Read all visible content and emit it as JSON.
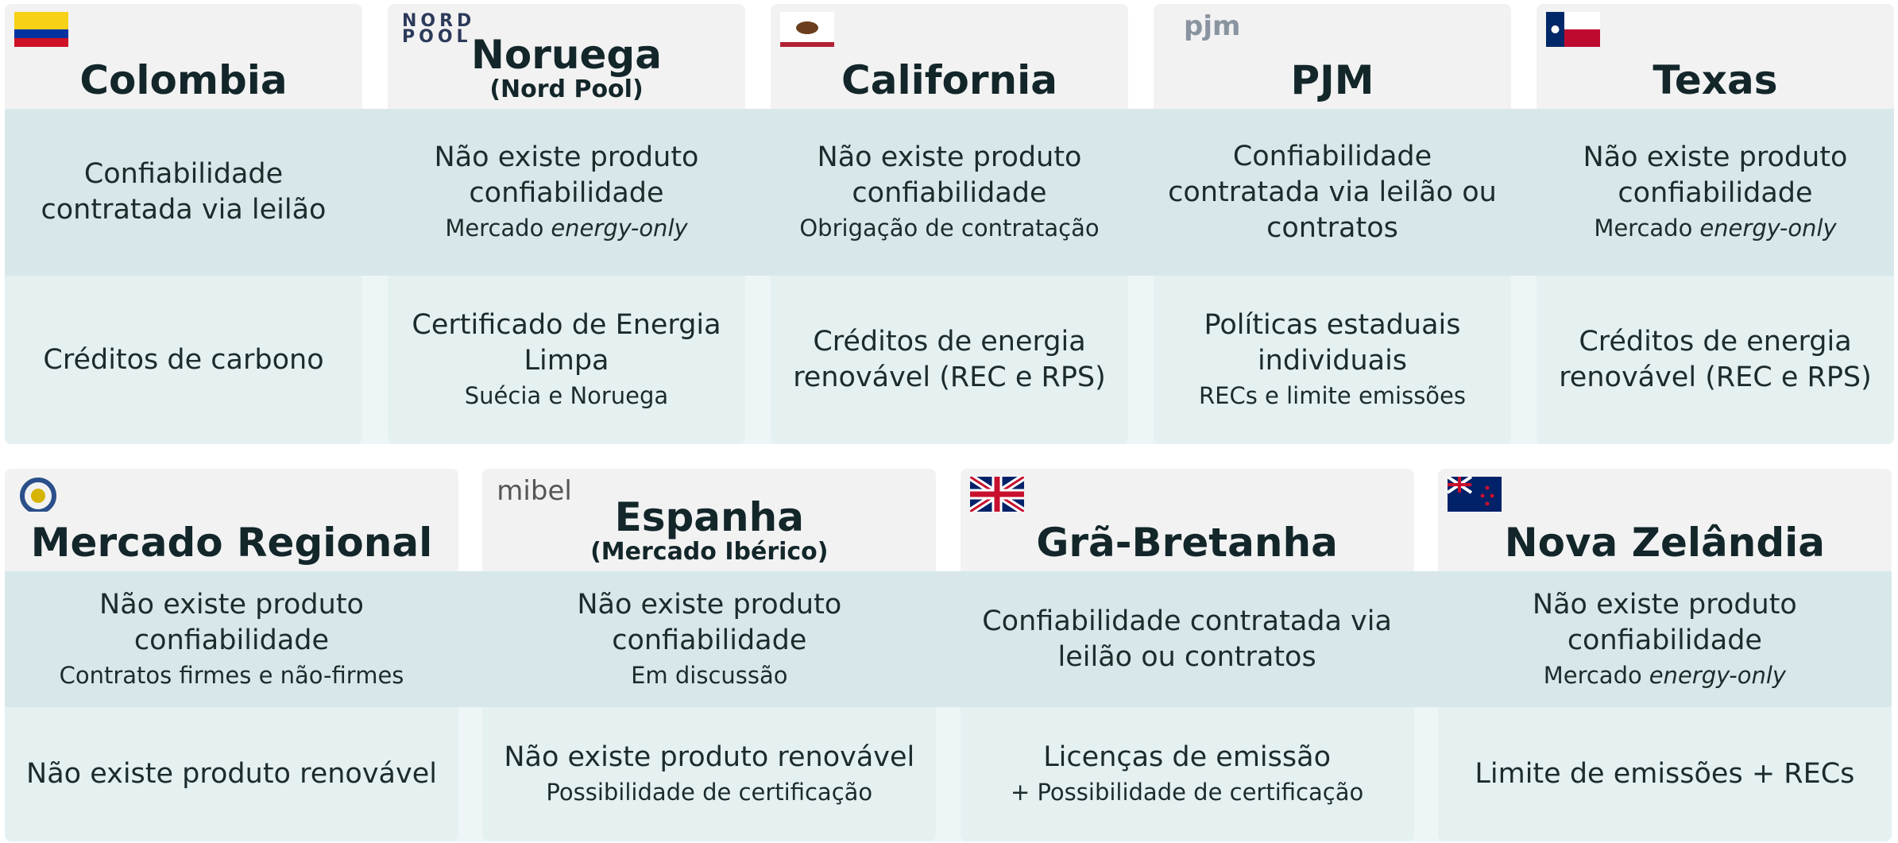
{
  "rows": [
    {
      "cards": [
        {
          "title": "Colombia",
          "reliability": {
            "main": "Confiabilidade contratada via leilão"
          },
          "renewable": {
            "main": "Créditos de carbono"
          }
        },
        {
          "title": "Noruega",
          "subtitle": "(Nord Pool)",
          "logo": [
            "NORD",
            "POOL"
          ],
          "reliability": {
            "main": "Não existe produto confiabilidade",
            "note": "Mercado",
            "note_em": "energy-only"
          },
          "renewable": {
            "main": "Certificado de Energia Limpa",
            "note": "Suécia e Noruega"
          }
        },
        {
          "title": "California",
          "reliability": {
            "main": "Não existe produto confiabilidade",
            "note": "Obrigação de contratação"
          },
          "renewable": {
            "main": "Créditos de energia renovável (REC e RPS)"
          }
        },
        {
          "title": "PJM",
          "logo": [
            "pjm"
          ],
          "reliability": {
            "main": "Confiabilidade contratada via leilão ou contratos"
          },
          "renewable": {
            "main": "Políticas estaduais individuais",
            "note": "RECs e limite emissões"
          }
        },
        {
          "title": "Texas",
          "reliability": {
            "main": "Não existe produto confiabilidade",
            "note": "Mercado",
            "note_em": "energy-only"
          },
          "renewable": {
            "main": "Créditos de energia renovável (REC e RPS)"
          }
        }
      ]
    },
    {
      "cards": [
        {
          "title": "Mercado Regional",
          "reliability": {
            "main": "Não existe produto confiabilidade",
            "note": "Contratos firmes e não-firmes"
          },
          "renewable": {
            "main": "Não existe produto renovável"
          }
        },
        {
          "title": "Espanha",
          "subtitle": "(Mercado Ibérico)",
          "logo": [
            "mibel"
          ],
          "reliability": {
            "main": "Não existe produto confiabilidade",
            "note": "Em discussão"
          },
          "renewable": {
            "main": "Não existe produto renovável",
            "note": "Possibilidade de certificação"
          }
        },
        {
          "title": "Grã-Bretanha",
          "reliability": {
            "main": "Confiabilidade contratada via leilão ou contratos"
          },
          "renewable": {
            "main": "Licenças de emissão",
            "note": "+ Possibilidade de certificação"
          }
        },
        {
          "title": "Nova Zelândia",
          "reliability": {
            "main": "Não existe produto confiabilidade",
            "note": "Mercado",
            "note_em": "energy-only"
          },
          "renewable": {
            "main": "Limite de emissões + RECs"
          }
        }
      ]
    }
  ]
}
